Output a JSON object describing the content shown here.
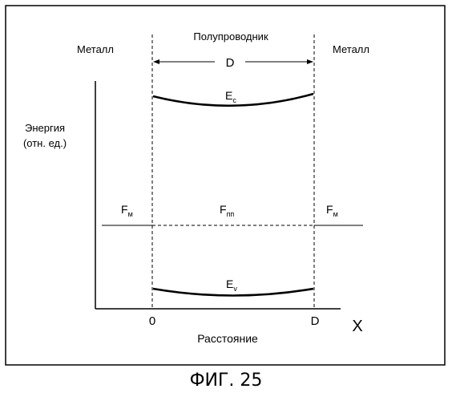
{
  "labels": {
    "semiconductor": "Полупроводник",
    "metal_left": "Металл",
    "metal_right": "Металл",
    "width": "D",
    "energy_line1": "Энергия",
    "energy_line2": "(отн. ед.)",
    "conduction_band": {
      "main": "E",
      "sub": "c"
    },
    "valence_band": {
      "main": "E",
      "sub": "v"
    },
    "fermi_metal_left": {
      "main": "F",
      "sub": "м"
    },
    "fermi_semiconductor": {
      "main": "F",
      "sub": "пп"
    },
    "fermi_metal_right": {
      "main": "F",
      "sub": "м"
    },
    "x_origin": "0",
    "x_end": "D",
    "x_axis": "X",
    "distance": "Расстояние"
  },
  "caption": "ФИГ. 25"
}
